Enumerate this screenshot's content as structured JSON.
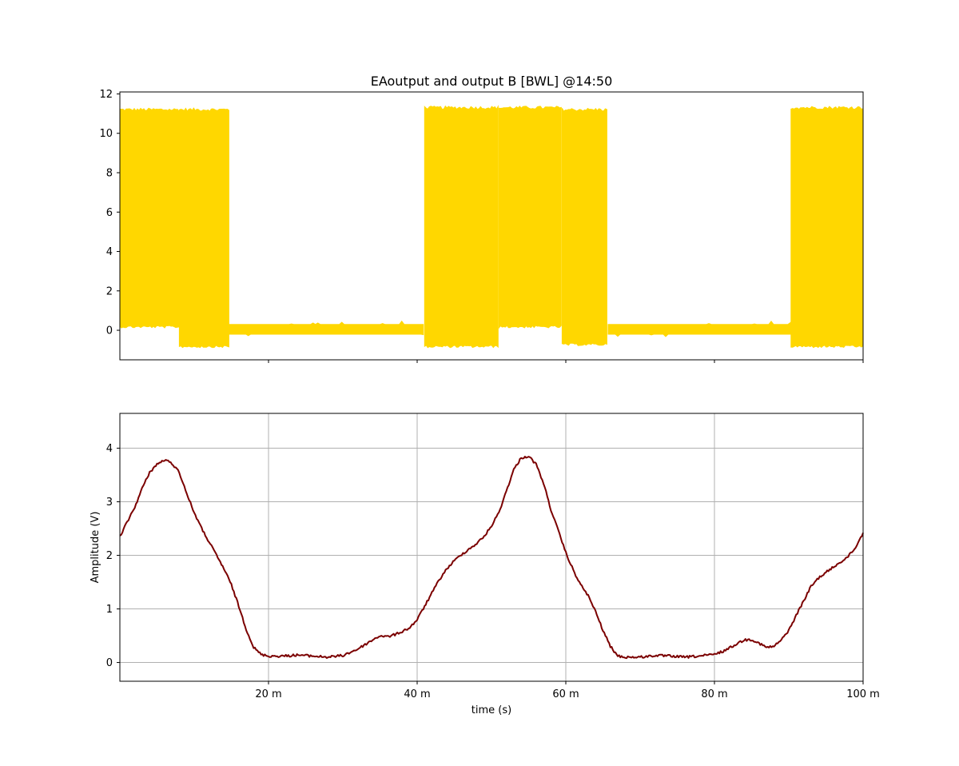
{
  "chart_data": [
    {
      "type": "line",
      "title": "EAoutput and output B   [BWL] @14:50",
      "xlabel": "",
      "ylabel": "",
      "xlim": [
        0,
        100
      ],
      "ylim": [
        -1.5,
        12.1
      ],
      "y_ticks": [
        0,
        2,
        4,
        6,
        8,
        10,
        12
      ],
      "y_tick_labels": [
        "0",
        "2",
        "4",
        "6",
        "8",
        "10",
        "12"
      ],
      "x_ticks": [
        20,
        40,
        60,
        80,
        100
      ],
      "x_tick_labels_shown": false,
      "grid": false,
      "series": [
        {
          "color": "#ffd700",
          "style": "switching-band",
          "segments": [
            {
              "x_start": 0,
              "x_end": 8,
              "state": "switching",
              "low": 0.2,
              "high": 11.2
            },
            {
              "x_start": 8,
              "x_end": 14.7,
              "state": "switching",
              "low": -0.8,
              "high": 11.2
            },
            {
              "x_start": 14.7,
              "x_end": 41,
              "state": "idle",
              "low": -0.2,
              "high": 0.3
            },
            {
              "x_start": 41,
              "x_end": 51,
              "state": "switching",
              "low": -0.8,
              "high": 11.3
            },
            {
              "x_start": 51,
              "x_end": 59.5,
              "state": "switching",
              "low": 0.2,
              "high": 11.3
            },
            {
              "x_start": 59.5,
              "x_end": 65.7,
              "state": "switching",
              "low": -0.7,
              "high": 11.2
            },
            {
              "x_start": 65.7,
              "x_end": 90.3,
              "state": "idle",
              "low": -0.2,
              "high": 0.3
            },
            {
              "x_start": 90.3,
              "x_end": 100,
              "state": "switching",
              "low": -0.8,
              "high": 11.3
            }
          ]
        }
      ]
    },
    {
      "type": "line",
      "title": "",
      "xlabel": "time (s)",
      "ylabel": "Amplitude (V)",
      "xlim": [
        0,
        100
      ],
      "ylim": [
        -0.35,
        4.65
      ],
      "y_ticks": [
        0,
        1,
        2,
        3,
        4
      ],
      "y_tick_labels": [
        "0",
        "1",
        "2",
        "3",
        "4"
      ],
      "x_ticks": [
        20,
        40,
        60,
        80,
        100
      ],
      "x_tick_labels": [
        "20 m",
        "40 m",
        "60 m",
        "80 m",
        "100 m"
      ],
      "grid": true,
      "series": [
        {
          "color": "#7b0000",
          "x": [
            0,
            2,
            3,
            4,
            5,
            6,
            7,
            8,
            9,
            10,
            11,
            12,
            13,
            14,
            15,
            16,
            17,
            18,
            19,
            20,
            22,
            24,
            26,
            28,
            30,
            32,
            34,
            35,
            36,
            37,
            38,
            39,
            40,
            41,
            42,
            43,
            44,
            45,
            46,
            47,
            48,
            49,
            50,
            51,
            52,
            53,
            54,
            55,
            56,
            57,
            58,
            59,
            60,
            61,
            62,
            63,
            64,
            65,
            66,
            67,
            68,
            70,
            72,
            74,
            76,
            78,
            80,
            81,
            82,
            83,
            84,
            85,
            86,
            87,
            88,
            89,
            90,
            91,
            92,
            93,
            94,
            95,
            96,
            97,
            98,
            99,
            100
          ],
          "y": [
            2.35,
            2.9,
            3.25,
            3.55,
            3.7,
            3.78,
            3.72,
            3.55,
            3.15,
            2.8,
            2.5,
            2.25,
            2.0,
            1.75,
            1.45,
            1.05,
            0.62,
            0.28,
            0.15,
            0.12,
            0.12,
            0.14,
            0.12,
            0.1,
            0.13,
            0.25,
            0.42,
            0.5,
            0.48,
            0.52,
            0.58,
            0.65,
            0.8,
            1.05,
            1.3,
            1.55,
            1.75,
            1.9,
            2.02,
            2.12,
            2.22,
            2.35,
            2.55,
            2.8,
            3.2,
            3.6,
            3.82,
            3.85,
            3.7,
            3.35,
            2.85,
            2.45,
            2.05,
            1.72,
            1.45,
            1.25,
            0.95,
            0.6,
            0.3,
            0.12,
            0.1,
            0.1,
            0.13,
            0.12,
            0.1,
            0.12,
            0.15,
            0.2,
            0.27,
            0.35,
            0.42,
            0.43,
            0.36,
            0.28,
            0.3,
            0.42,
            0.6,
            0.88,
            1.15,
            1.42,
            1.58,
            1.68,
            1.78,
            1.88,
            1.98,
            2.15,
            2.42
          ]
        }
      ]
    }
  ]
}
